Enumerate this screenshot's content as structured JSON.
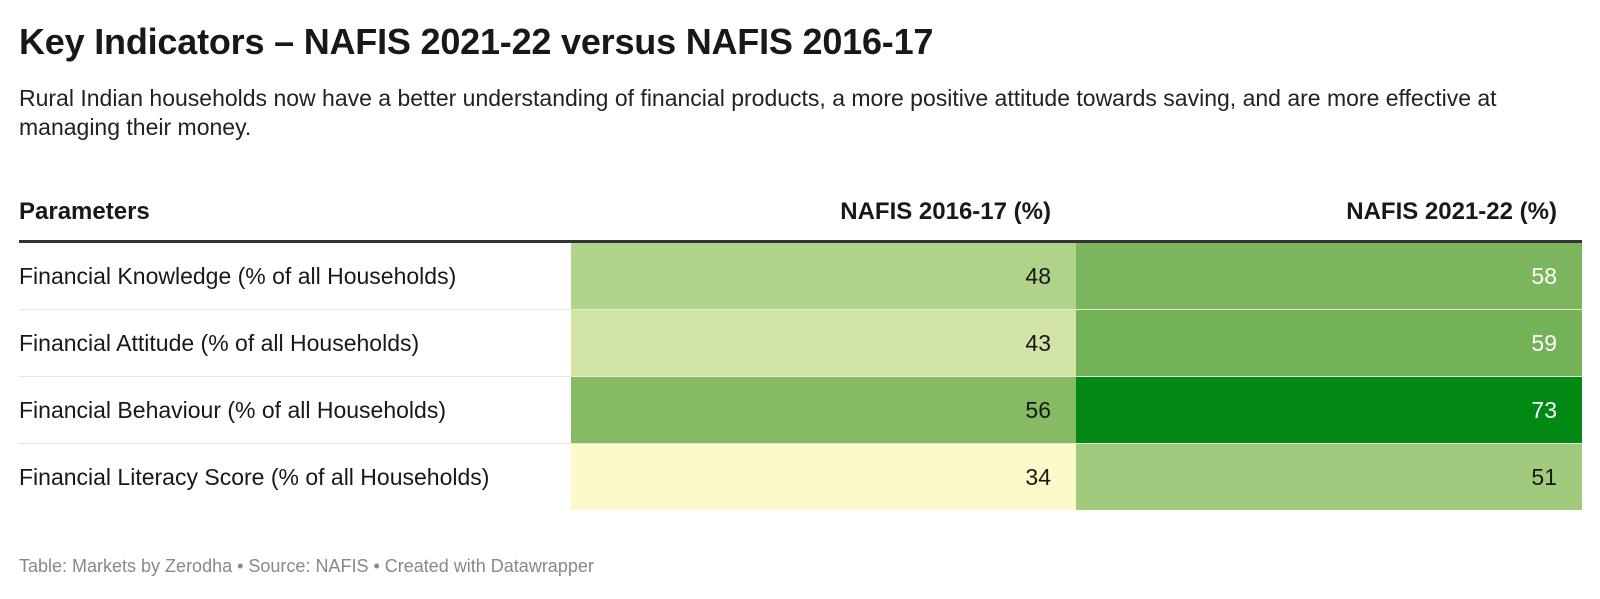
{
  "header": {
    "title": "Key Indicators – NAFIS 2021-22 versus NAFIS 2016-17",
    "subtitle": "Rural Indian households now have a better understanding of financial products, a more positive attitude towards saving, and are more effective at managing their money."
  },
  "chart_data": {
    "type": "table",
    "columns": [
      "Parameters",
      "NAFIS 2016-17 (%)",
      "NAFIS 2021-22 (%)"
    ],
    "rows": [
      {
        "parameter": "Financial Knowledge (% of all Households)",
        "v2016": "48",
        "v2021": "58",
        "bg2016": "#b0d38a",
        "bg2021": "#7cb65c",
        "fg2016": "#181818",
        "fg2021": "#ffffff"
      },
      {
        "parameter": "Financial Attitude (% of all Households)",
        "v2016": "43",
        "v2021": "59",
        "bg2016": "#d1e4a5",
        "bg2021": "#74b257",
        "fg2016": "#181818",
        "fg2021": "#ffffff"
      },
      {
        "parameter": "Financial Behaviour (% of all Households)",
        "v2016": "56",
        "v2021": "73",
        "bg2016": "#86bb63",
        "bg2021": "#008a14",
        "fg2016": "#181818",
        "fg2021": "#ffffff"
      },
      {
        "parameter": "Financial Literacy Score (% of all Households)",
        "v2016": "34",
        "v2021": "51",
        "bg2016": "#fdf9c9",
        "bg2021": "#a0ca7c",
        "fg2016": "#181818",
        "fg2021": "#181818"
      }
    ]
  },
  "footer": {
    "text": "Table: Markets by Zerodha • Source: NAFIS • Created with Datawrapper"
  }
}
